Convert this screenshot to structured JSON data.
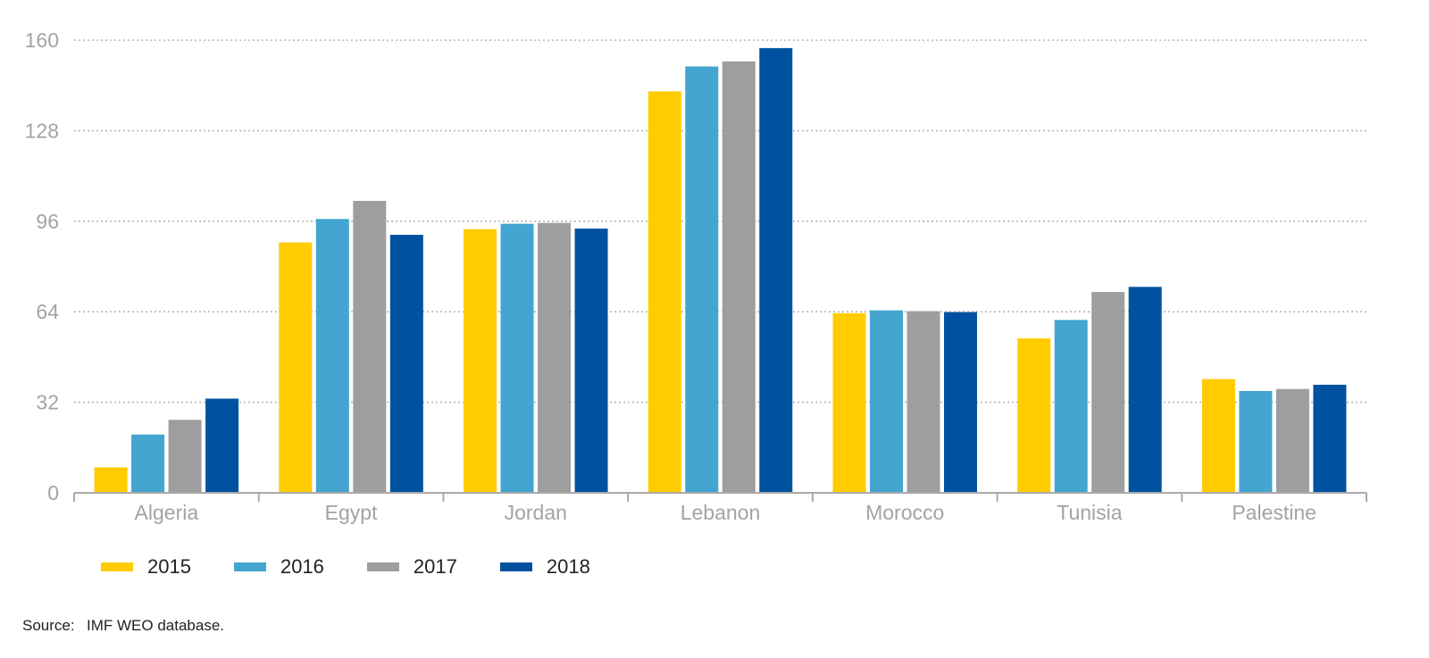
{
  "chart_data": {
    "type": "bar",
    "title": "",
    "xlabel": "",
    "ylabel": "",
    "categories": [
      "Algeria",
      "Egypt",
      "Jordan",
      "Lebanon",
      "Morocco",
      "Tunisia",
      "Palestine"
    ],
    "series": [
      {
        "name": "2015",
        "color": "#ffcc00",
        "values": [
          9,
          88.5,
          93.2,
          141.9,
          63.5,
          54.6,
          40.2
        ]
      },
      {
        "name": "2016",
        "color": "#43a5d0",
        "values": [
          20.6,
          96.8,
          95.1,
          150.7,
          64.5,
          61.1,
          36.0
        ]
      },
      {
        "name": "2017",
        "color": "#9d9e9d",
        "values": [
          25.8,
          103.2,
          95.4,
          152.5,
          64.2,
          71.0,
          36.7
        ]
      },
      {
        "name": "2018",
        "color": "#0052a0",
        "values": [
          33.3,
          91.2,
          93.4,
          157.2,
          63.9,
          72.8,
          38.2
        ]
      }
    ],
    "yticks": [
      "0",
      "32",
      "64",
      "96",
      "128",
      "160"
    ],
    "ylim": [
      0,
      160
    ],
    "grid": "horizontal-dotted",
    "legend_position": "bottom-left"
  },
  "source": {
    "prefix": "Source:",
    "text": "IMF WEO database."
  }
}
